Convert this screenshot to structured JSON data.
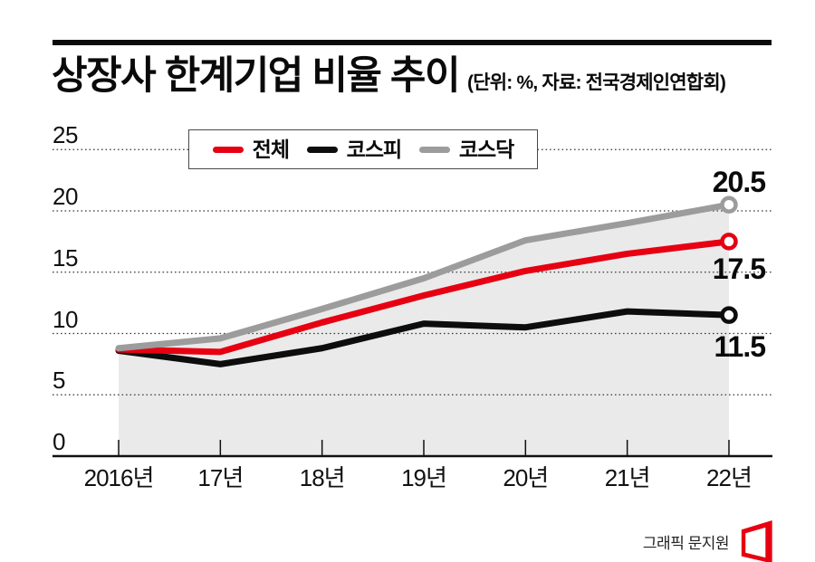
{
  "header": {
    "title": "상장사 한계기업 비율 추이",
    "subtitle": "(단위: %, 자료: 전국경제인연합회)"
  },
  "credit": {
    "text": "그래픽 문지원"
  },
  "colors": {
    "accent_red": "#e60012",
    "kospi_black": "#0d0d0d",
    "kosdaq_gray": "#9c9c9c",
    "area_fill": "#eaeaea",
    "grid": "#3a3a3a",
    "axis": "#111111",
    "logo_red": "#e60012"
  },
  "chart_data": {
    "type": "line",
    "title": "상장사 한계기업 비율 추이",
    "unit": "%",
    "source": "전국경제인연합회",
    "categories": [
      "2016년",
      "17년",
      "18년",
      "19년",
      "20년",
      "21년",
      "22년"
    ],
    "y_ticks": [
      25,
      20,
      15,
      10,
      5,
      0
    ],
    "ylim": [
      0,
      25
    ],
    "grid": "horizontal-dotted",
    "legend_position": "top",
    "series": [
      {
        "key": "total",
        "name": "전체",
        "color": "#e60012",
        "values": [
          8.7,
          8.5,
          10.9,
          13.1,
          15.1,
          16.5,
          17.5
        ],
        "end_label": "17.5"
      },
      {
        "key": "kospi",
        "name": "코스피",
        "color": "#0d0d0d",
        "values": [
          8.6,
          7.5,
          8.8,
          10.8,
          10.5,
          11.8,
          11.5
        ],
        "end_label": "11.5"
      },
      {
        "key": "kosdaq",
        "name": "코스닥",
        "color": "#9c9c9c",
        "values": [
          8.8,
          9.6,
          12.0,
          14.5,
          17.6,
          19.0,
          20.5
        ],
        "end_label": "20.5",
        "area": true
      }
    ]
  }
}
